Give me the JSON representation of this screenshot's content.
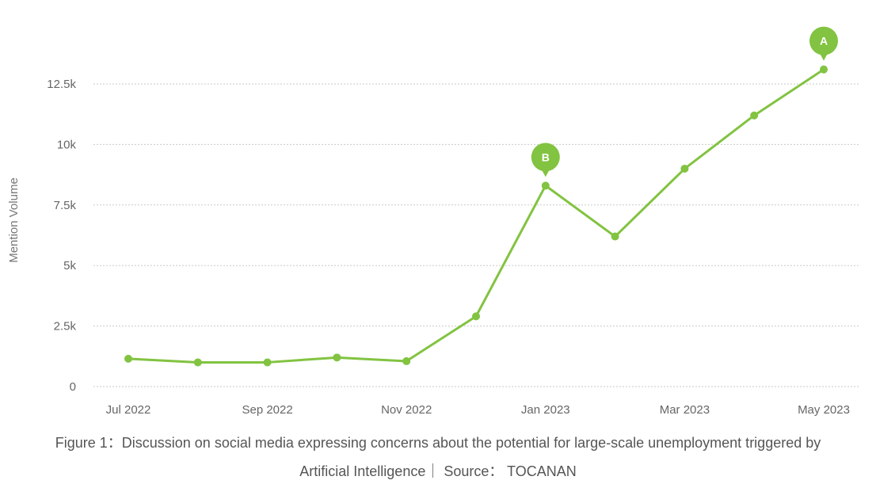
{
  "chart_data": {
    "type": "line",
    "ylabel": "Mention Volume",
    "x": [
      "Jul 2022",
      "Aug 2022",
      "Sep 2022",
      "Oct 2022",
      "Nov 2022",
      "Dec 2022",
      "Jan 2023",
      "Feb 2023",
      "Mar 2023",
      "Apr 2023",
      "May 2023"
    ],
    "x_tick_labels": [
      "Jul 2022",
      "",
      "Sep 2022",
      "",
      "Nov 2022",
      "",
      "Jan 2023",
      "",
      "Mar 2023",
      "",
      "May 2023"
    ],
    "y_ticks": [
      0,
      2500,
      5000,
      7500,
      10000,
      12500
    ],
    "y_tick_labels": [
      "0",
      "2.5k",
      "5k",
      "7.5k",
      "10k",
      "12.5k"
    ],
    "ylim": [
      0,
      13800
    ],
    "grid": true,
    "series": [
      {
        "values": [
          1150,
          1000,
          1000,
          1200,
          1050,
          2900,
          8300,
          6200,
          9000,
          11200,
          13100
        ],
        "color": "#82c341"
      }
    ],
    "annotations": [
      {
        "label": "B",
        "x": "Jan 2023"
      },
      {
        "label": "A",
        "x": "May 2023"
      }
    ]
  },
  "caption": {
    "line1": "Figure 1：Discussion on social media expressing concerns about the potential for large-scale unemployment triggered by",
    "line2": "Artificial Intelligence｜ Source： TOCANAN"
  }
}
